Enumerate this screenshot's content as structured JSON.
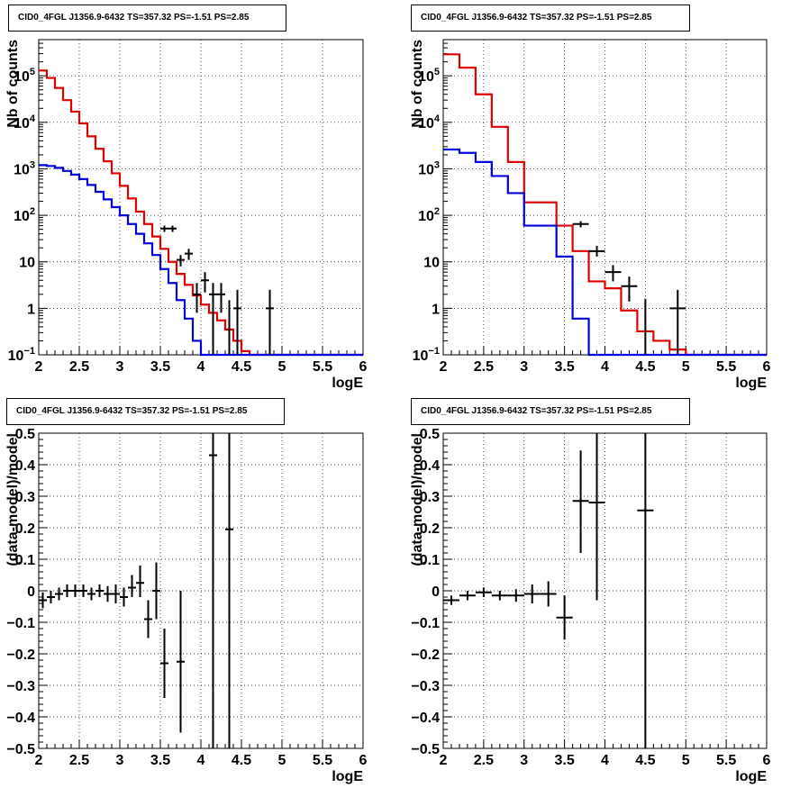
{
  "colors": {
    "data": "#000000",
    "model_total": "#e00000",
    "model_component": "#0000dd",
    "grid": "#000000"
  },
  "chart_data": [
    {
      "id": "counts-left",
      "type": "histogram",
      "title": "CID0_4FGL J1356.9-6432 TS=357.32 PS=-1.51 PS=2.85",
      "xlabel": "logE",
      "ylabel": "Nb of counts",
      "xlim": [
        2,
        6
      ],
      "ylim": [
        0.1,
        600000
      ],
      "yscale": "log",
      "grid": true,
      "x_ticks": [
        "2",
        "2.5",
        "3",
        "3.5",
        "4",
        "4.5",
        "5",
        "5.5",
        "6"
      ],
      "y_ticks": [
        {
          "v": 0.1,
          "base": "10",
          "exp": "−1"
        },
        {
          "v": 1,
          "label": "1"
        },
        {
          "v": 10,
          "label": "10"
        },
        {
          "v": 100,
          "base": "10",
          "exp": "2"
        },
        {
          "v": 1000,
          "base": "10",
          "exp": "3"
        },
        {
          "v": 10000,
          "base": "10",
          "exp": "4"
        },
        {
          "v": 100000,
          "base": "10",
          "exp": "5"
        }
      ],
      "bin_edges": [
        2.0,
        2.1,
        2.2,
        2.3,
        2.4,
        2.5,
        2.6,
        2.7,
        2.8,
        2.9,
        3.0,
        3.1,
        3.2,
        3.3,
        3.4,
        3.5,
        3.6,
        3.7,
        3.8,
        3.9,
        4.0,
        4.1,
        4.2,
        4.3,
        4.4,
        4.5,
        4.6,
        4.7,
        4.8,
        4.9,
        5.0,
        5.1,
        5.2,
        5.3,
        5.4,
        5.5,
        5.6,
        5.7,
        5.8,
        5.9,
        6.0
      ],
      "series": [
        {
          "name": "",
          "style": "step",
          "color": "#e00000",
          "values": [
            130000,
            90000,
            55000,
            30000,
            17000,
            9500,
            5000,
            2700,
            1450,
            800,
            430,
            230,
            120,
            65,
            35,
            19,
            10,
            5.5,
            3.2,
            1.9,
            1.2,
            0.8,
            0.55,
            0.35,
            0.2,
            0.12,
            0.1,
            0.1,
            0.1,
            0.1,
            0.1,
            0.1,
            0.1,
            0.1,
            0.1,
            0.1,
            0.1,
            0.1,
            0.1,
            0.1
          ]
        },
        {
          "name": "",
          "style": "step",
          "color": "#0000dd",
          "values": [
            1200,
            1150,
            1050,
            900,
            750,
            600,
            450,
            320,
            220,
            150,
            100,
            65,
            40,
            25,
            14,
            7,
            3.5,
            1.5,
            0.6,
            0.2,
            0.1,
            0.1,
            0.1,
            0.1,
            0.1,
            0.1,
            0.1,
            0.1,
            0.1,
            0.1,
            0.1,
            0.1,
            0.1,
            0.1,
            0.1,
            0.1,
            0.1,
            0.1,
            0.1,
            0.1
          ]
        }
      ],
      "points": [
        {
          "x": 3.55,
          "y": 52,
          "xerr": 0.05,
          "yl": 44,
          "yh": 60
        },
        {
          "x": 3.65,
          "y": 52,
          "xerr": 0.05,
          "yl": 44,
          "yh": 60
        },
        {
          "x": 3.75,
          "y": 11,
          "xerr": 0.05,
          "yl": 8,
          "yh": 14
        },
        {
          "x": 3.85,
          "y": 15,
          "xerr": 0.05,
          "yl": 11,
          "yh": 19
        },
        {
          "x": 3.95,
          "y": 2,
          "xerr": 0.05,
          "yl": 0.8,
          "yh": 3.5
        },
        {
          "x": 4.05,
          "y": 4,
          "xerr": 0.05,
          "yl": 2.2,
          "yh": 6
        },
        {
          "x": 4.15,
          "y": 2,
          "xerr": 0.05,
          "yl": 0.8,
          "yh": 3.5
        },
        {
          "x": 4.25,
          "y": 2,
          "xerr": 0.05,
          "yl": 0.8,
          "yh": 3.5
        },
        {
          "x": 4.45,
          "y": 1,
          "xerr": 0.05,
          "yl": 0.1,
          "yh": 2.5
        },
        {
          "x": 4.85,
          "y": 1,
          "xerr": 0.05,
          "yl": 0.1,
          "yh": 2.5
        }
      ],
      "data_bars_low": [
        {
          "x": 4.15,
          "yh": 2
        },
        {
          "x": 4.35,
          "yh": 1.5
        }
      ]
    },
    {
      "id": "counts-right",
      "type": "histogram",
      "title": "CID0_4FGL J1356.9-6432 TS=357.32 PS=-1.51 PS=2.85",
      "xlabel": "logE",
      "ylabel": "Nb of counts",
      "xlim": [
        2,
        6
      ],
      "ylim": [
        0.1,
        600000
      ],
      "yscale": "log",
      "grid": true,
      "x_ticks": [
        "2",
        "2.5",
        "3",
        "3.5",
        "4",
        "4.5",
        "5",
        "5.5",
        "6"
      ],
      "y_ticks": [
        {
          "v": 0.1,
          "base": "10",
          "exp": "−1"
        },
        {
          "v": 1,
          "label": "1"
        },
        {
          "v": 10,
          "label": "10"
        },
        {
          "v": 100,
          "base": "10",
          "exp": "2"
        },
        {
          "v": 1000,
          "base": "10",
          "exp": "3"
        },
        {
          "v": 10000,
          "base": "10",
          "exp": "4"
        },
        {
          "v": 100000,
          "base": "10",
          "exp": "5"
        }
      ],
      "bin_edges": [
        2.0,
        2.2,
        2.4,
        2.6,
        2.8,
        3.0,
        3.2,
        3.4,
        3.6,
        3.8,
        4.0,
        4.2,
        4.4,
        4.6,
        4.8,
        5.0,
        5.2,
        5.4,
        5.6,
        5.8,
        6.0
      ],
      "series": [
        {
          "name": "",
          "style": "step",
          "color": "#e00000",
          "values": [
            290000,
            150000,
            40000,
            8000,
            1400,
            190,
            190,
            60,
            17,
            3.8,
            2.7,
            0.9,
            0.32,
            0.2,
            0.13,
            0.1,
            0.1,
            0.1,
            0.1,
            0.1
          ]
        },
        {
          "name": "",
          "style": "step",
          "color": "#0000dd",
          "values": [
            2600,
            2200,
            1400,
            700,
            300,
            60,
            60,
            13,
            0.6,
            0.1,
            0.1,
            0.1,
            0.1,
            0.1,
            0.1,
            0.1,
            0.1,
            0.1,
            0.1,
            0.1
          ]
        }
      ],
      "points": [
        {
          "x": 3.7,
          "y": 65,
          "xerr": 0.1,
          "yl": 55,
          "yh": 75
        },
        {
          "x": 3.9,
          "y": 17,
          "xerr": 0.1,
          "yl": 13,
          "yh": 22
        },
        {
          "x": 4.1,
          "y": 6,
          "xerr": 0.1,
          "yl": 3.8,
          "yh": 8.5
        },
        {
          "x": 4.3,
          "y": 3,
          "xerr": 0.1,
          "yl": 1.4,
          "yh": 4.8
        },
        {
          "x": 4.5,
          "y": 0.1,
          "xerr": 0,
          "yl": 0.1,
          "yh": 1.6
        },
        {
          "x": 4.9,
          "y": 1,
          "xerr": 0.1,
          "yl": 0.1,
          "yh": 2.5
        }
      ],
      "data_bars_low": []
    },
    {
      "id": "residual-left",
      "type": "scatter",
      "title": "CID0_4FGL J1356.9-6432 TS=357.32 PS=-1.51 PS=2.85",
      "xlabel": "logE",
      "ylabel": "(data-model)/model",
      "xlim": [
        2,
        6
      ],
      "ylim": [
        -0.5,
        0.5
      ],
      "yscale": "linear",
      "grid": true,
      "x_ticks": [
        "2",
        "2.5",
        "3",
        "3.5",
        "4",
        "4.5",
        "5",
        "5.5",
        "6"
      ],
      "y_ticks": [
        {
          "v": -0.5,
          "label": "−0.5"
        },
        {
          "v": -0.4,
          "label": "−0.4"
        },
        {
          "v": -0.3,
          "label": "−0.3"
        },
        {
          "v": -0.2,
          "label": "−0.2"
        },
        {
          "v": -0.1,
          "label": "−0.1"
        },
        {
          "v": 0,
          "label": "0"
        },
        {
          "v": 0.1,
          "label": "0.1"
        },
        {
          "v": 0.2,
          "label": "0.2"
        },
        {
          "v": 0.3,
          "label": "0.3"
        },
        {
          "v": 0.4,
          "label": "0.4"
        },
        {
          "v": 0.5,
          "label": "0.5"
        }
      ],
      "points": [
        {
          "x": 2.05,
          "y": -0.03,
          "xerr": 0.05,
          "yl": -0.055,
          "yh": -0.005
        },
        {
          "x": 2.15,
          "y": -0.02,
          "xerr": 0.05,
          "yl": -0.04,
          "yh": 0.0
        },
        {
          "x": 2.25,
          "y": -0.01,
          "xerr": 0.05,
          "yl": -0.03,
          "yh": 0.01
        },
        {
          "x": 2.35,
          "y": 0.0,
          "xerr": 0.05,
          "yl": -0.02,
          "yh": 0.02
        },
        {
          "x": 2.45,
          "y": 0.0,
          "xerr": 0.05,
          "yl": -0.02,
          "yh": 0.02
        },
        {
          "x": 2.55,
          "y": 0.0,
          "xerr": 0.05,
          "yl": -0.02,
          "yh": 0.02
        },
        {
          "x": 2.65,
          "y": -0.01,
          "xerr": 0.05,
          "yl": -0.03,
          "yh": 0.01
        },
        {
          "x": 2.75,
          "y": 0.0,
          "xerr": 0.05,
          "yl": -0.02,
          "yh": 0.02
        },
        {
          "x": 2.85,
          "y": -0.01,
          "xerr": 0.05,
          "yl": -0.035,
          "yh": 0.015
        },
        {
          "x": 2.95,
          "y": -0.01,
          "xerr": 0.05,
          "yl": -0.04,
          "yh": 0.02
        },
        {
          "x": 3.05,
          "y": -0.02,
          "xerr": 0.05,
          "yl": -0.05,
          "yh": 0.01
        },
        {
          "x": 3.15,
          "y": 0.01,
          "xerr": 0.05,
          "yl": -0.02,
          "yh": 0.05
        },
        {
          "x": 3.25,
          "y": 0.025,
          "xerr": 0.05,
          "yl": -0.02,
          "yh": 0.08
        },
        {
          "x": 3.35,
          "y": -0.09,
          "xerr": 0.05,
          "yl": -0.15,
          "yh": -0.03
        },
        {
          "x": 3.45,
          "y": 0.0,
          "xerr": 0.05,
          "yl": -0.09,
          "yh": 0.09
        },
        {
          "x": 3.55,
          "y": -0.23,
          "xerr": 0.05,
          "yl": -0.34,
          "yh": -0.12
        },
        {
          "x": 3.75,
          "y": -0.225,
          "xerr": 0.05,
          "yl": -0.45,
          "yh": 0.0
        },
        {
          "x": 4.15,
          "y": 0.43,
          "xerr": 0.05,
          "yl": -0.5,
          "yh": 0.5
        },
        {
          "x": 4.35,
          "y": 0.195,
          "xerr": 0.05,
          "yl": -0.5,
          "yh": 0.5
        }
      ]
    },
    {
      "id": "residual-right",
      "type": "scatter",
      "title": "CID0_4FGL J1356.9-6432 TS=357.32 PS=-1.51 PS=2.85",
      "xlabel": "logE",
      "ylabel": "(data-model)/model",
      "xlim": [
        2,
        6
      ],
      "ylim": [
        -0.5,
        0.5
      ],
      "yscale": "linear",
      "grid": true,
      "x_ticks": [
        "2",
        "2.5",
        "3",
        "3.5",
        "4",
        "4.5",
        "5",
        "5.5",
        "6"
      ],
      "y_ticks": [
        {
          "v": -0.5,
          "label": "−0.5"
        },
        {
          "v": -0.4,
          "label": "−0.4"
        },
        {
          "v": -0.3,
          "label": "−0.3"
        },
        {
          "v": -0.2,
          "label": "−0.2"
        },
        {
          "v": -0.1,
          "label": "−0.1"
        },
        {
          "v": 0,
          "label": "0"
        },
        {
          "v": 0.1,
          "label": "0.1"
        },
        {
          "v": 0.2,
          "label": "0.2"
        },
        {
          "v": 0.3,
          "label": "0.3"
        },
        {
          "v": 0.4,
          "label": "0.4"
        },
        {
          "v": 0.5,
          "label": "0.5"
        }
      ],
      "points": [
        {
          "x": 2.1,
          "y": -0.03,
          "xerr": 0.1,
          "yl": -0.045,
          "yh": -0.015
        },
        {
          "x": 2.3,
          "y": -0.015,
          "xerr": 0.1,
          "yl": -0.03,
          "yh": 0.0
        },
        {
          "x": 2.5,
          "y": -0.005,
          "xerr": 0.1,
          "yl": -0.02,
          "yh": 0.01
        },
        {
          "x": 2.7,
          "y": -0.015,
          "xerr": 0.1,
          "yl": -0.03,
          "yh": 0.0
        },
        {
          "x": 2.9,
          "y": -0.015,
          "xerr": 0.1,
          "yl": -0.035,
          "yh": 0.005
        },
        {
          "x": 3.1,
          "y": -0.01,
          "xerr": 0.1,
          "yl": -0.04,
          "yh": 0.02
        },
        {
          "x": 3.3,
          "y": -0.01,
          "xerr": 0.1,
          "yl": -0.05,
          "yh": 0.03
        },
        {
          "x": 3.5,
          "y": -0.085,
          "xerr": 0.1,
          "yl": -0.155,
          "yh": -0.015
        },
        {
          "x": 3.7,
          "y": 0.285,
          "xerr": 0.1,
          "yl": 0.12,
          "yh": 0.445
        },
        {
          "x": 3.9,
          "y": 0.28,
          "xerr": 0.1,
          "yl": -0.03,
          "yh": 0.5
        },
        {
          "x": 4.5,
          "y": 0.255,
          "xerr": 0.1,
          "yl": -0.5,
          "yh": 0.5
        }
      ]
    }
  ]
}
